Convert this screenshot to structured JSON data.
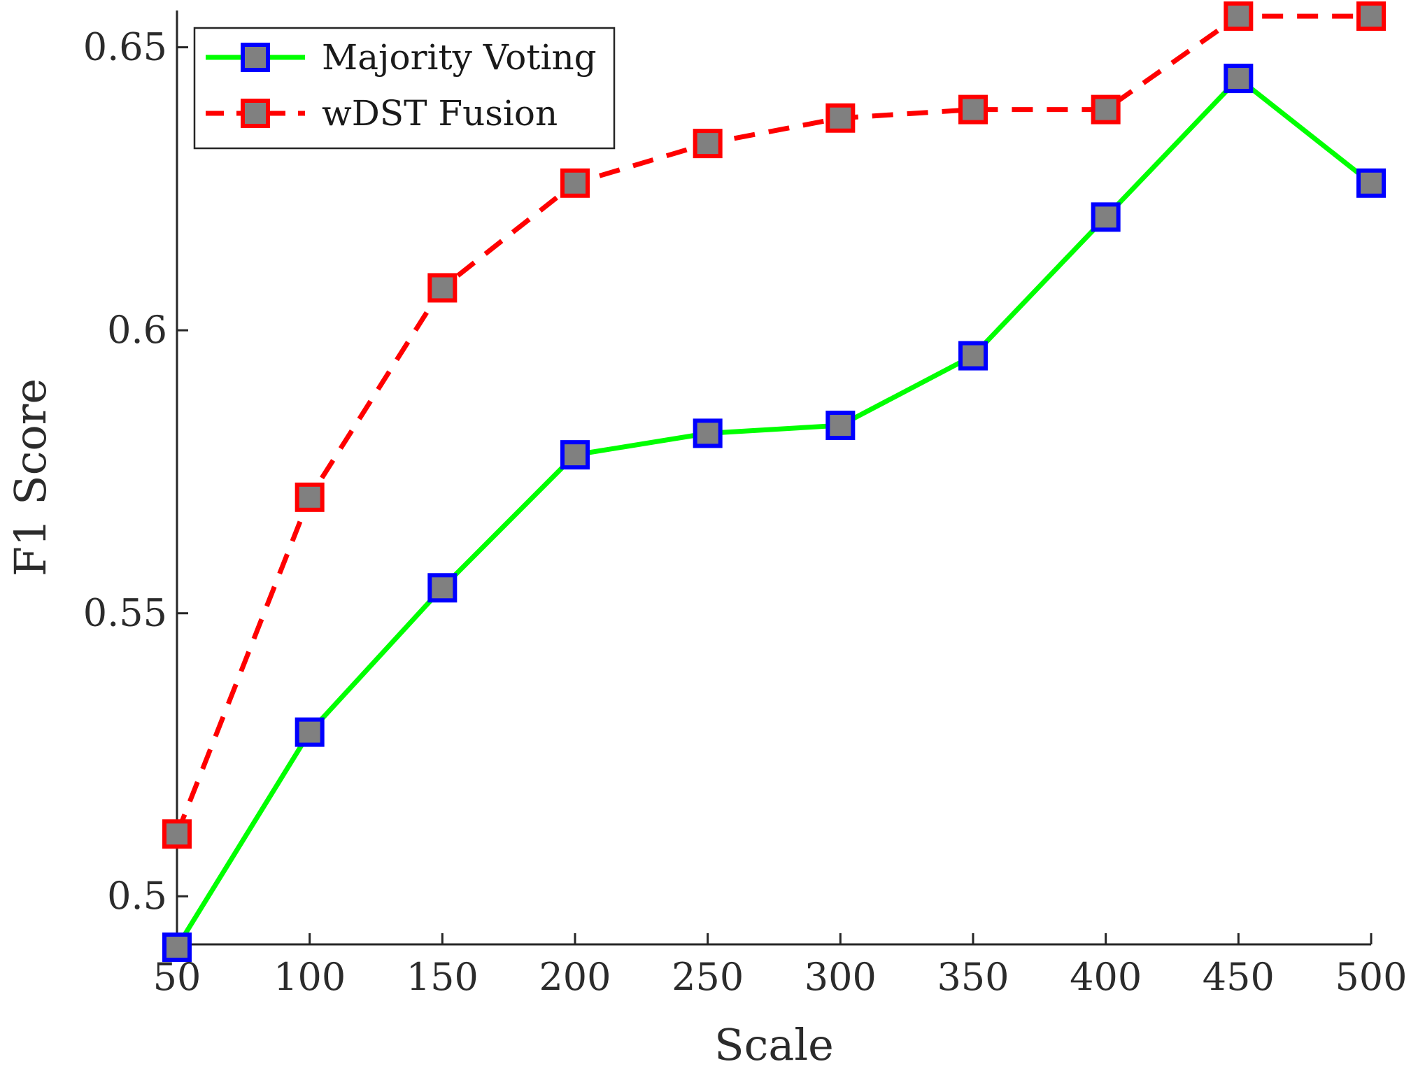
{
  "chart_data": {
    "type": "line",
    "title": "",
    "xlabel": "Scale",
    "ylabel": "F1 Score",
    "x": [
      50,
      100,
      150,
      200,
      250,
      300,
      350,
      400,
      450,
      500
    ],
    "xticks": [
      "50",
      "100",
      "150",
      "200",
      "250",
      "300",
      "350",
      "400",
      "450",
      "500"
    ],
    "yticks": [
      {
        "value": 0.5,
        "label": "0.5"
      },
      {
        "value": 0.55,
        "label": "0.55"
      },
      {
        "value": 0.6,
        "label": "0.6"
      },
      {
        "value": 0.65,
        "label": "0.65"
      }
    ],
    "xlim": [
      50,
      500
    ],
    "ylim": [
      0.4915,
      0.6565
    ],
    "grid": false,
    "legend_position": "top-left",
    "series": [
      {
        "name": "Majority Voting",
        "values": [
          0.491,
          0.529,
          0.5545,
          0.578,
          0.5818,
          0.5832,
          0.5955,
          0.62,
          0.6445,
          0.626
        ],
        "line_color": "#00ff00",
        "line_style": "solid",
        "marker_edge": "#0000ff",
        "marker_fill": "#808080"
      },
      {
        "name": "wDST Fusion",
        "values": [
          0.511,
          0.5705,
          0.6075,
          0.626,
          0.633,
          0.6375,
          0.639,
          0.639,
          0.6555,
          0.6555
        ],
        "line_color": "#ff0000",
        "line_style": "dashed",
        "marker_edge": "#ff0000",
        "marker_fill": "#808080"
      }
    ]
  }
}
